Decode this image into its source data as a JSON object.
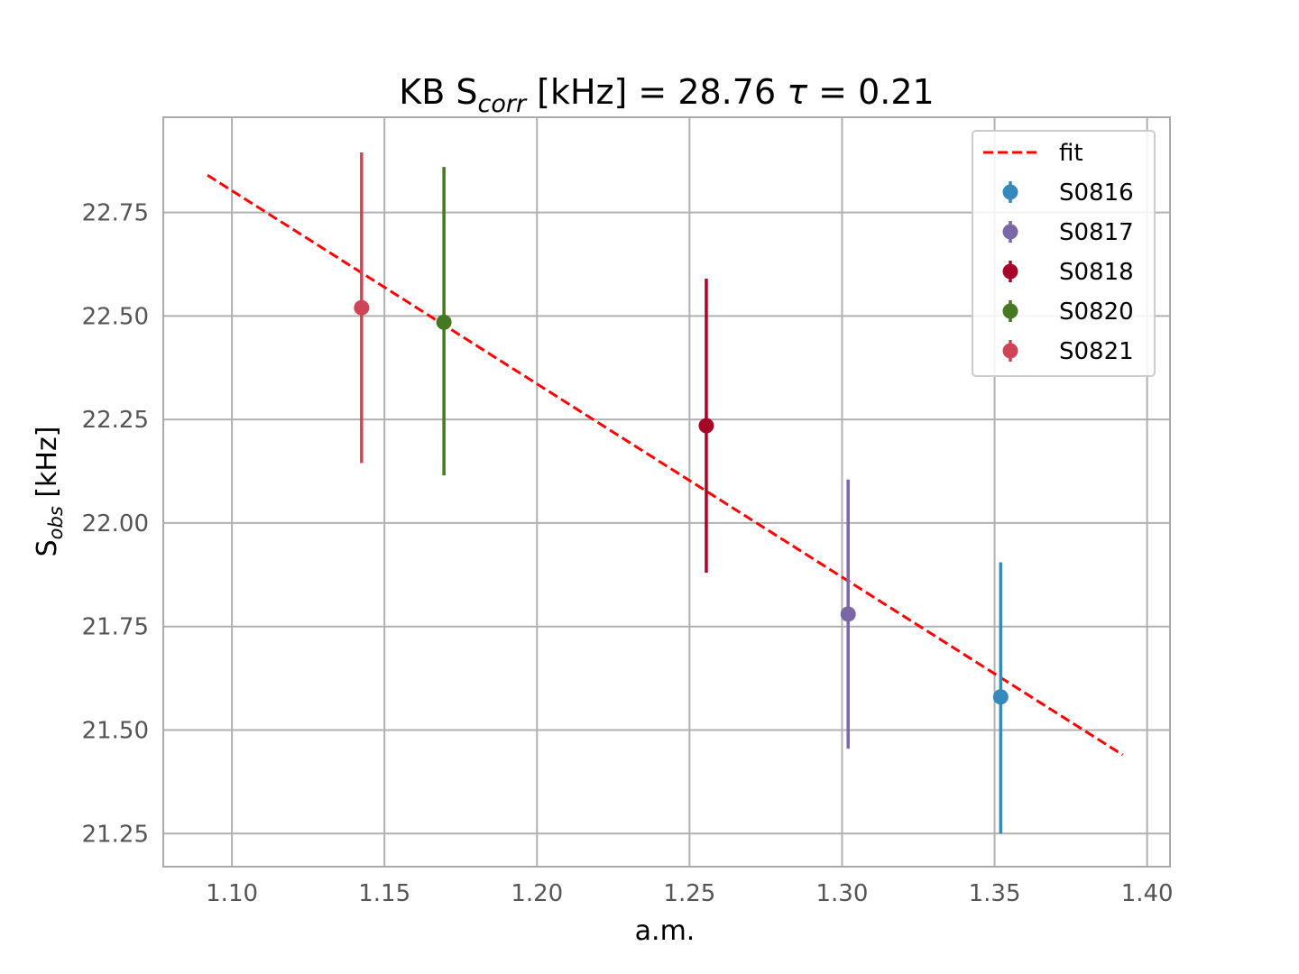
{
  "chart_data": {
    "type": "scatter",
    "title": {
      "prefix": "KB S",
      "subscript": "corr",
      "middle": " [kHz] = 28.76 ",
      "tau_symbol": "τ",
      "suffix": " = 0.21"
    },
    "xlabel": "a.m.",
    "ylabel": {
      "main": "S",
      "subscript": "obs",
      "suffix": " [kHz]"
    },
    "xlim": [
      1.0775,
      1.4075
    ],
    "ylim": [
      21.17,
      22.98
    ],
    "xticks": [
      "1.10",
      "1.15",
      "1.20",
      "1.25",
      "1.30",
      "1.35",
      "1.40"
    ],
    "yticks": [
      "21.25",
      "21.50",
      "21.75",
      "22.00",
      "22.25",
      "22.50",
      "22.75"
    ],
    "grid": true,
    "legend_position": "top-right",
    "fit": {
      "name": "fit",
      "color": "#ff0000",
      "style": "dashed",
      "x": [
        1.092,
        1.392
      ],
      "y": [
        22.84,
        21.44
      ]
    },
    "series": [
      {
        "name": "S0816",
        "color": "#348abd",
        "x": 1.352,
        "y": 21.58,
        "yerr_low": 21.25,
        "yerr_high": 21.905
      },
      {
        "name": "S0817",
        "color": "#7a68a6",
        "x": 1.302,
        "y": 21.78,
        "yerr_low": 21.455,
        "yerr_high": 22.105
      },
      {
        "name": "S0818",
        "color": "#a60628",
        "x": 1.2555,
        "y": 22.235,
        "yerr_low": 21.88,
        "yerr_high": 22.59
      },
      {
        "name": "S0820",
        "color": "#467821",
        "x": 1.1695,
        "y": 22.485,
        "yerr_low": 22.115,
        "yerr_high": 22.86
      },
      {
        "name": "S0821",
        "color": "#cf4457",
        "x": 1.1425,
        "y": 22.52,
        "yerr_low": 22.145,
        "yerr_high": 22.895
      }
    ]
  }
}
